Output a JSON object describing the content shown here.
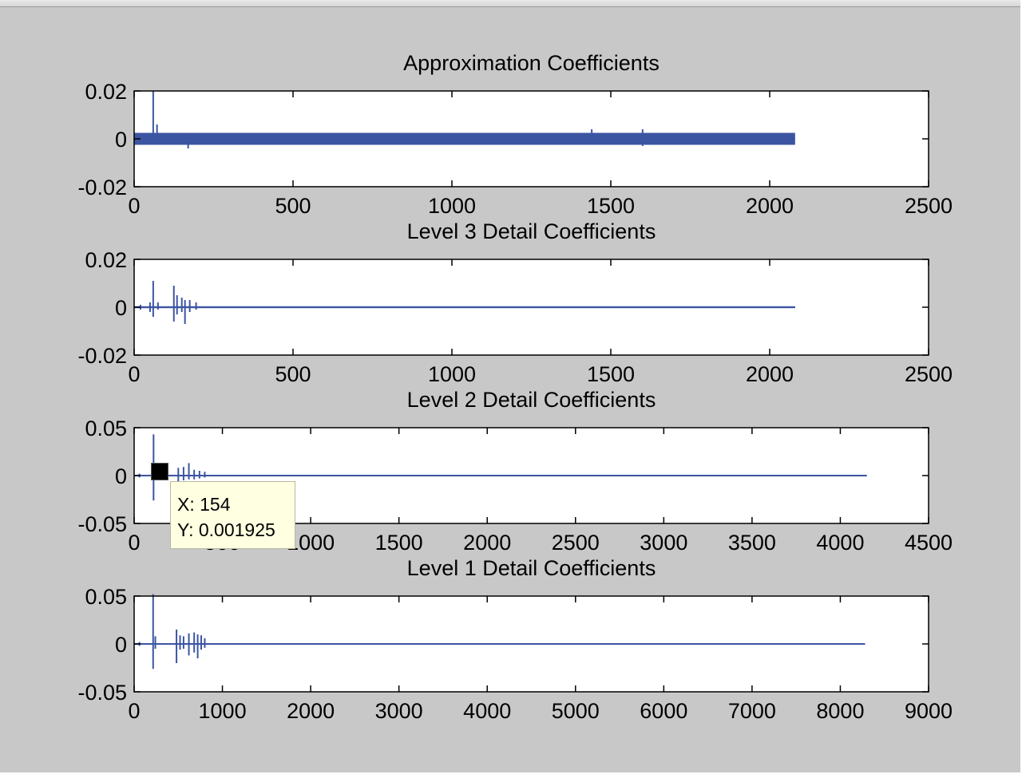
{
  "chart_data": [
    {
      "type": "line",
      "title": "Approximation Coefficients",
      "xlim": [
        0,
        2500
      ],
      "ylim": [
        -0.02,
        0.02
      ],
      "xticks": [
        "0",
        "500",
        "1000",
        "1500",
        "2000",
        "2500"
      ],
      "yticks": [
        "0.02",
        "0",
        "-0.02"
      ],
      "color": "#3c55a2",
      "series_length": 2080,
      "band": [
        -0.0025,
        0.0025
      ],
      "spikes": [
        {
          "x": 60,
          "min": -0.002,
          "max": 0.02
        },
        {
          "x": 72,
          "min": -0.002,
          "max": 0.006
        },
        {
          "x": 170,
          "min": -0.004,
          "max": 0.002
        },
        {
          "x": 1440,
          "min": -0.002,
          "max": 0.004
        },
        {
          "x": 1600,
          "min": -0.003,
          "max": 0.004
        }
      ]
    },
    {
      "type": "line",
      "title": "Level 3 Detail Coefficients",
      "xlim": [
        0,
        2500
      ],
      "ylim": [
        -0.02,
        0.02
      ],
      "xticks": [
        "0",
        "500",
        "1000",
        "1500",
        "2000",
        "2500"
      ],
      "yticks": [
        "0.02",
        "0",
        "-0.02"
      ],
      "color": "#3c55a2",
      "series_length": 2080,
      "band": [
        -0.0004,
        0.0004
      ],
      "spikes": [
        {
          "x": 20,
          "min": -0.001,
          "max": 0.001
        },
        {
          "x": 50,
          "min": -0.002,
          "max": 0.002
        },
        {
          "x": 60,
          "min": -0.004,
          "max": 0.011
        },
        {
          "x": 75,
          "min": -0.001,
          "max": 0.002
        },
        {
          "x": 125,
          "min": -0.006,
          "max": 0.009
        },
        {
          "x": 135,
          "min": -0.003,
          "max": 0.005
        },
        {
          "x": 150,
          "min": -0.002,
          "max": 0.004
        },
        {
          "x": 160,
          "min": -0.007,
          "max": 0.003
        },
        {
          "x": 175,
          "min": -0.002,
          "max": 0.003
        },
        {
          "x": 195,
          "min": -0.001,
          "max": 0.002
        }
      ]
    },
    {
      "type": "line",
      "title": "Level 2 Detail Coefficients",
      "xlim": [
        0,
        4500
      ],
      "ylim": [
        -0.05,
        0.05
      ],
      "xticks": [
        "0",
        "500",
        "1000",
        "1500",
        "2000",
        "2500",
        "3000",
        "3500",
        "4000",
        "4500"
      ],
      "yticks": [
        "0.05",
        "0",
        "-0.05"
      ],
      "color": "#3c55a2",
      "series_length": 4150,
      "band": [
        -0.0008,
        0.0008
      ],
      "spikes": [
        {
          "x": 30,
          "min": -0.002,
          "max": 0.002
        },
        {
          "x": 110,
          "min": -0.026,
          "max": 0.043
        },
        {
          "x": 154,
          "min": -0.002,
          "max": 0.002
        },
        {
          "x": 250,
          "min": -0.006,
          "max": 0.008
        },
        {
          "x": 280,
          "min": -0.005,
          "max": 0.009
        },
        {
          "x": 310,
          "min": -0.004,
          "max": 0.013
        },
        {
          "x": 340,
          "min": -0.004,
          "max": 0.006
        },
        {
          "x": 370,
          "min": -0.003,
          "max": 0.005
        },
        {
          "x": 400,
          "min": -0.002,
          "max": 0.004
        }
      ]
    },
    {
      "type": "line",
      "title": "Level 1 Detail Coefficients",
      "xlim": [
        0,
        9000
      ],
      "ylim": [
        -0.05,
        0.05
      ],
      "xticks": [
        "0",
        "1000",
        "2000",
        "3000",
        "4000",
        "5000",
        "6000",
        "7000",
        "8000",
        "9000"
      ],
      "yticks": [
        "0.05",
        "0",
        "-0.05"
      ],
      "color": "#3c55a2",
      "series_length": 8280,
      "band": [
        -0.0008,
        0.0008
      ],
      "spikes": [
        {
          "x": 60,
          "min": -0.002,
          "max": 0.002
        },
        {
          "x": 215,
          "min": -0.026,
          "max": 0.052
        },
        {
          "x": 240,
          "min": -0.005,
          "max": 0.008
        },
        {
          "x": 480,
          "min": -0.02,
          "max": 0.015
        },
        {
          "x": 520,
          "min": -0.006,
          "max": 0.009
        },
        {
          "x": 560,
          "min": -0.005,
          "max": 0.008
        },
        {
          "x": 620,
          "min": -0.012,
          "max": 0.011
        },
        {
          "x": 680,
          "min": -0.009,
          "max": 0.012
        },
        {
          "x": 720,
          "min": -0.015,
          "max": 0.01
        },
        {
          "x": 760,
          "min": -0.006,
          "max": 0.009
        },
        {
          "x": 800,
          "min": -0.004,
          "max": 0.006
        }
      ]
    }
  ],
  "datatip": {
    "x_text": "X: 154",
    "y_text": "Y: 0.001925",
    "plot_index": 2,
    "x": 154,
    "y": 0.001925
  }
}
